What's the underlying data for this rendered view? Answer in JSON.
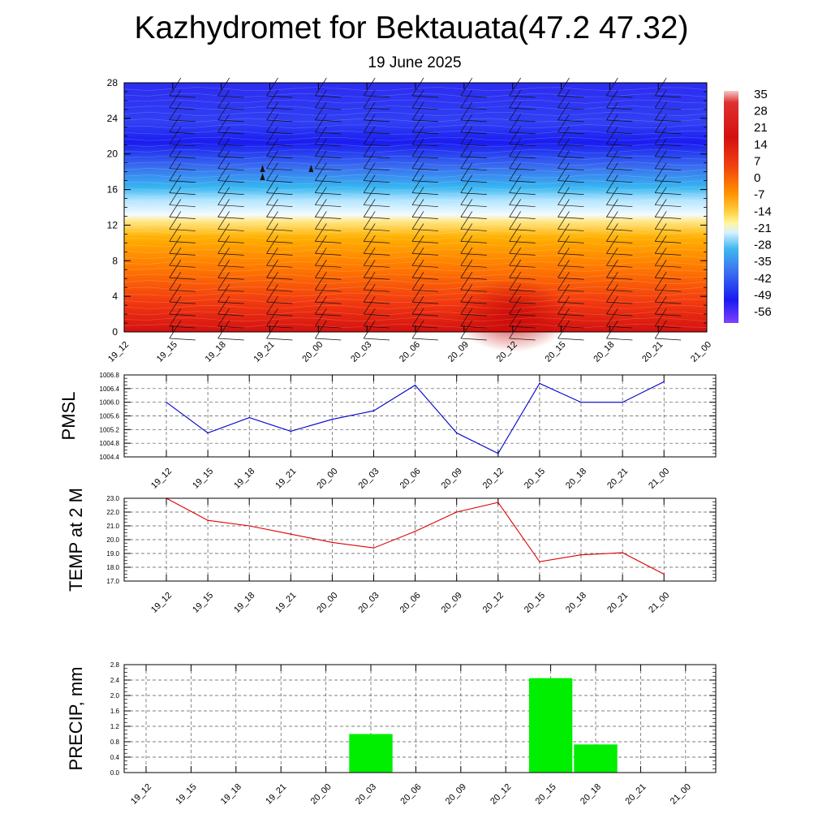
{
  "page": {
    "title": "Kazhydromet for Bektauata(47.2 47.32)",
    "subtitle": "19 June 2025"
  },
  "chart_data": [
    {
      "type": "heatmap",
      "title": "",
      "ylim": [
        0,
        28
      ],
      "y_ticks": [
        "0",
        "4",
        "8",
        "12",
        "16",
        "20",
        "24",
        "28"
      ],
      "x_ticks": [
        "19_12",
        "19_15",
        "19_18",
        "19_21",
        "20_00",
        "20_03",
        "20_06",
        "20_09",
        "20_12",
        "20_15",
        "20_18",
        "20_21",
        "21_00"
      ],
      "colorbar_labels": [
        "35",
        "28",
        "21",
        "14",
        "7",
        "0",
        "-7",
        "-14",
        "-21",
        "-28",
        "-35",
        "-42",
        "-49",
        "-56"
      ],
      "colors": {
        "hot": "#e01010",
        "warm": "#ff8c00",
        "yellow": "#fff6a0",
        "cyan": "#30b8f0",
        "blue": "#2030f0",
        "violet": "#7a30ff"
      }
    },
    {
      "type": "line",
      "ylabel": "PMSL",
      "ylim": [
        1004.4,
        1006.8
      ],
      "y_ticks": [
        "1004.4",
        "1004.8",
        "1005.2",
        "1005.6",
        "1006.0",
        "1006.4",
        "1006.8"
      ],
      "categories": [
        "19_12",
        "19_15",
        "19_18",
        "19_21",
        "20_00",
        "20_03",
        "20_06",
        "20_09",
        "20_12",
        "20_15",
        "20_18",
        "20_21",
        "21_00"
      ],
      "values": [
        1006.0,
        1005.1,
        1005.55,
        1005.15,
        1005.5,
        1005.75,
        1006.5,
        1005.1,
        1004.5,
        1006.55,
        1006.0,
        1006.0,
        1006.6
      ],
      "color": "#0000cc"
    },
    {
      "type": "line",
      "ylabel": "TEMP at 2 M",
      "ylim": [
        17.0,
        23.0
      ],
      "y_ticks": [
        "17.0",
        "18.0",
        "19.0",
        "20.0",
        "21.0",
        "22.0",
        "23.0"
      ],
      "categories": [
        "19_12",
        "19_15",
        "19_18",
        "19_21",
        "20_00",
        "20_03",
        "20_06",
        "20_09",
        "20_12",
        "20_15",
        "20_18",
        "20_21",
        "21_00"
      ],
      "values": [
        23.0,
        21.4,
        21.0,
        20.4,
        19.8,
        19.4,
        20.6,
        22.0,
        22.7,
        18.4,
        18.9,
        19.05,
        17.5
      ],
      "color": "#dd0000"
    },
    {
      "type": "bar",
      "ylabel": "PRECIP, mm",
      "ylim": [
        0.0,
        2.8
      ],
      "y_ticks": [
        "0.0",
        "0.4",
        "0.8",
        "1.2",
        "1.6",
        "2.0",
        "2.4",
        "2.8"
      ],
      "categories": [
        "19_12",
        "19_15",
        "19_18",
        "19_21",
        "20_00",
        "20_03",
        "20_06",
        "20_09",
        "20_12",
        "20_15",
        "20_18",
        "20_21",
        "21_00"
      ],
      "values": [
        0,
        0,
        0,
        0,
        0,
        1.0,
        0,
        0,
        0,
        2.45,
        0.73,
        0,
        0
      ],
      "color": "#00ee00"
    }
  ]
}
